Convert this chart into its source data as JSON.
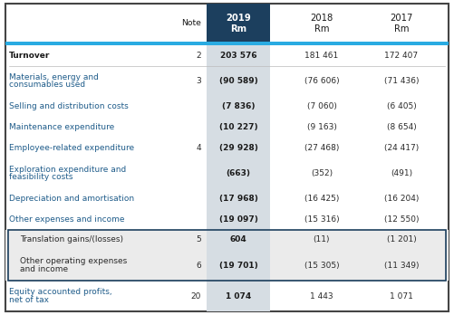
{
  "header_2019_bg": "#1c3f5e",
  "accent_line_color": "#29abe2",
  "col2019_bg": "#d6dde3",
  "shaded_bg": "#ebebeb",
  "outer_border": "#444444",
  "text_dark": "#1a1a1a",
  "text_body": "#2a2a2a",
  "text_blue": "#1f5c8a",
  "rows": [
    {
      "label": "Turnover",
      "note": "2",
      "v2019": "203 576",
      "v2018": "181 461",
      "v2017": "172 407",
      "bold": true,
      "shaded": false,
      "two_line": false,
      "indent": false
    },
    {
      "label": "Materials, energy and",
      "note": "3",
      "v2019": "(90 589)",
      "v2018": "(76 606)",
      "v2017": "(71 436)",
      "bold": false,
      "shaded": false,
      "two_line": true,
      "label2": "consumables used",
      "indent": false
    },
    {
      "label": "Selling and distribution costs",
      "note": "",
      "v2019": "(7 836)",
      "v2018": "(7 060)",
      "v2017": "(6 405)",
      "bold": false,
      "shaded": false,
      "two_line": false,
      "indent": false
    },
    {
      "label": "Maintenance expenditure",
      "note": "",
      "v2019": "(10 227)",
      "v2018": "(9 163)",
      "v2017": "(8 654)",
      "bold": false,
      "shaded": false,
      "two_line": false,
      "indent": false
    },
    {
      "label": "Employee-related expenditure",
      "note": "4",
      "v2019": "(29 928)",
      "v2018": "(27 468)",
      "v2017": "(24 417)",
      "bold": false,
      "shaded": false,
      "two_line": false,
      "indent": false
    },
    {
      "label": "Exploration expenditure and",
      "note": "",
      "v2019": "(663)",
      "v2018": "(352)",
      "v2017": "(491)",
      "bold": false,
      "shaded": false,
      "two_line": true,
      "label2": "feasibility costs",
      "indent": false
    },
    {
      "label": "Depreciation and amortisation",
      "note": "",
      "v2019": "(17 968)",
      "v2018": "(16 425)",
      "v2017": "(16 204)",
      "bold": false,
      "shaded": false,
      "two_line": false,
      "indent": false
    },
    {
      "label": "Other expenses and income",
      "note": "",
      "v2019": "(19 097)",
      "v2018": "(15 316)",
      "v2017": "(12 550)",
      "bold": false,
      "shaded": false,
      "two_line": false,
      "indent": false
    },
    {
      "label": "Translation gains/(losses)",
      "note": "5",
      "v2019": "604",
      "v2018": "(11)",
      "v2017": "(1 201)",
      "bold": false,
      "shaded": true,
      "two_line": false,
      "indent": true
    },
    {
      "label": "Other operating expenses",
      "note": "6",
      "v2019": "(19 701)",
      "v2018": "(15 305)",
      "v2017": "(11 349)",
      "bold": false,
      "shaded": true,
      "two_line": true,
      "label2": "and income",
      "indent": true
    },
    {
      "label": "Equity accounted profits,",
      "note": "20",
      "v2019": "1 074",
      "v2018": "1 443",
      "v2017": "1 071",
      "bold": false,
      "shaded": false,
      "two_line": true,
      "label2": "net of tax",
      "indent": false
    }
  ],
  "font_size_header": 7.2,
  "font_size_body": 6.5
}
